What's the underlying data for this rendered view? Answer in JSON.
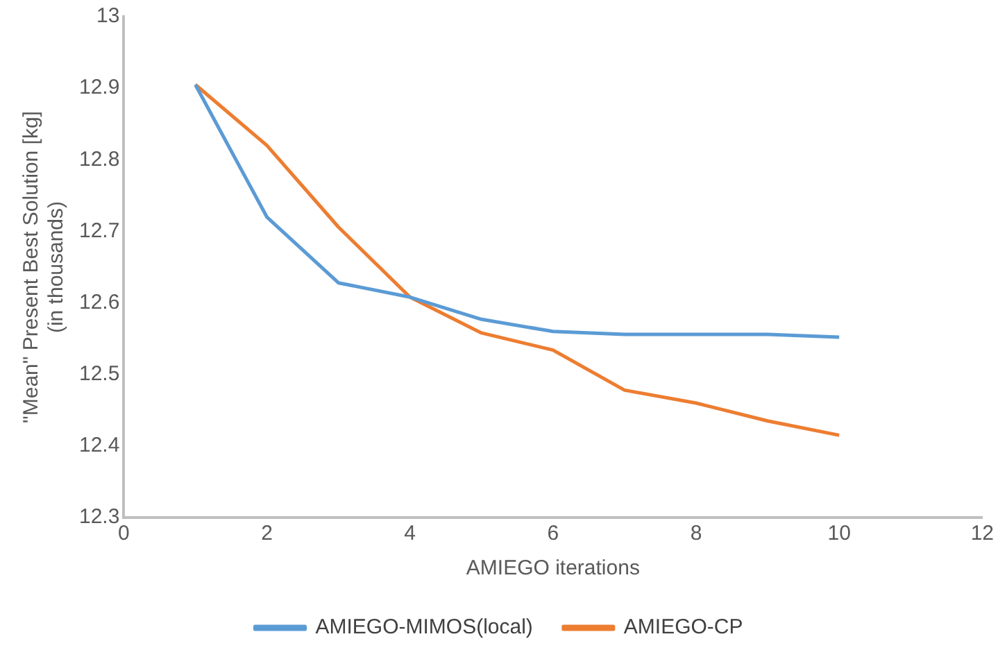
{
  "chart_data": {
    "type": "line",
    "xlabel": "AMIEGO iterations",
    "ylabel": "\"Mean\" Present Best Solution [kg] (in thousands)",
    "x": [
      1,
      2,
      3,
      4,
      5,
      6,
      7,
      8,
      9,
      10
    ],
    "series": [
      {
        "name": "AMIEGO-MIMOS(local)",
        "color": "#5b9bd5",
        "values": [
          12.905,
          12.72,
          12.628,
          12.608,
          12.577,
          12.56,
          12.556,
          12.556,
          12.556,
          12.552
        ]
      },
      {
        "name": "AMIEGO-CP",
        "color": "#ed7d31",
        "values": [
          12.905,
          12.82,
          12.706,
          12.608,
          12.558,
          12.534,
          12.478,
          12.46,
          12.435,
          12.415
        ]
      }
    ],
    "xlim": [
      0,
      12
    ],
    "xticks": [
      0,
      2,
      4,
      6,
      8,
      10,
      12
    ],
    "ylim": [
      12.3,
      13
    ],
    "yticks": [
      12.3,
      12.4,
      12.5,
      12.6,
      12.7,
      12.8,
      12.9,
      13
    ],
    "grid": false,
    "legend": "bottom",
    "marker": "none",
    "line_style": "solid"
  }
}
